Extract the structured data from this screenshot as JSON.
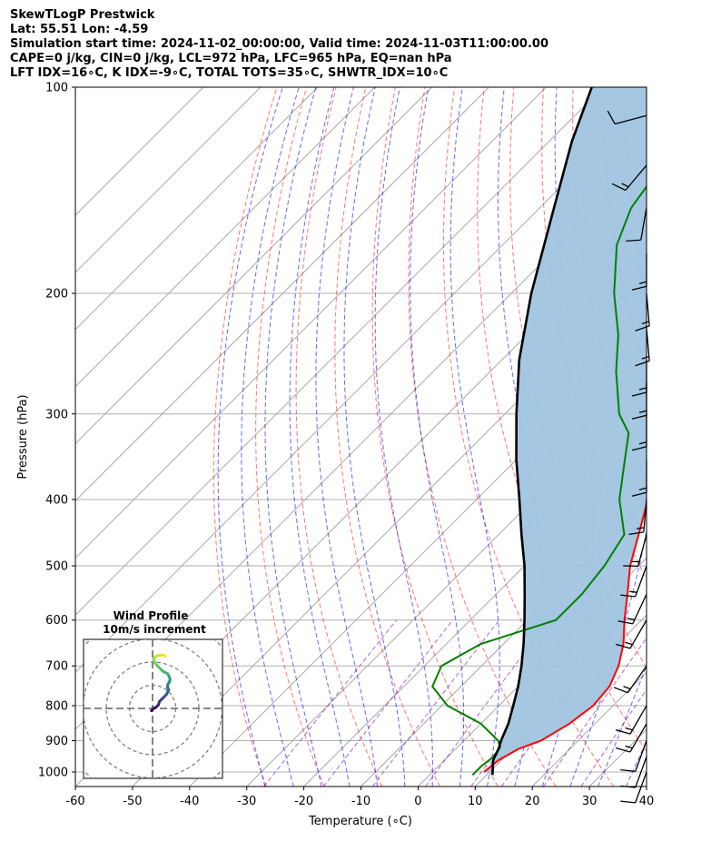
{
  "header": {
    "title": "SkewTLogP Prestwick",
    "location": "Lat: 55.51   Lon: -4.59",
    "times": "Simulation start time: 2024-11-02_00:00:00, Valid time: 2024-11-03T11:00:00.00",
    "indices1": "CAPE=0 j/kg, CIN=0 j/kg, LCL=972 hPa, LFC=965 hPa, EQ=nan hPa",
    "indices2": "LFT IDX=16∘C, K IDX=-9∘C, TOTAL TOTS=35∘C, SHWTR_IDX=10∘C"
  },
  "hodograph": {
    "title": "Wind Profile",
    "subtitle": "10m/s increment"
  },
  "colors": {
    "temperature": "#ff0000",
    "dewpoint": "#008000",
    "parcel": "#000000",
    "shade": "#a0c4df",
    "dry_adiabat": "#ff0000",
    "moist_adiabat": "#0000ff",
    "mixing_ratio": "#8000a0",
    "isotherm": "#a0a0a0"
  },
  "chart_data": {
    "type": "line",
    "xlabel": "Temperature (∘C)",
    "ylabel": "Pressure (hPa)",
    "xlim": [
      -60,
      40
    ],
    "ylim": [
      1050,
      100
    ],
    "yscale": "log",
    "grid": true,
    "x_ticks": [
      -60,
      -50,
      -40,
      -30,
      -20,
      -10,
      0,
      10,
      20,
      30,
      40
    ],
    "y_ticks": [
      100,
      200,
      300,
      400,
      500,
      600,
      700,
      800,
      900,
      1000
    ],
    "series": [
      {
        "role": "temperature",
        "points": [
          [
            1000,
            9
          ],
          [
            960,
            9.5
          ],
          [
            925,
            11
          ],
          [
            900,
            13.5
          ],
          [
            850,
            15.5
          ],
          [
            800,
            16.5
          ],
          [
            750,
            16
          ],
          [
            700,
            14
          ],
          [
            650,
            11
          ],
          [
            600,
            7
          ],
          [
            550,
            3
          ],
          [
            500,
            -1.5
          ],
          [
            450,
            -5.5
          ],
          [
            400,
            -10
          ],
          [
            350,
            -15.5
          ],
          [
            300,
            -21.5
          ],
          [
            270,
            -26
          ],
          [
            250,
            -29
          ],
          [
            230,
            -32
          ],
          [
            200,
            -36
          ],
          [
            180,
            -41
          ],
          [
            160,
            -47
          ],
          [
            140,
            -54
          ],
          [
            125,
            -58
          ],
          [
            110,
            -61
          ],
          [
            100,
            -63
          ]
        ]
      },
      {
        "role": "dewpoint",
        "points": [
          [
            1010,
            7.5
          ],
          [
            980,
            7.5
          ],
          [
            950,
            8
          ],
          [
            920,
            7.5
          ],
          [
            900,
            6
          ],
          [
            850,
            0
          ],
          [
            800,
            -9
          ],
          [
            750,
            -15
          ],
          [
            700,
            -17
          ],
          [
            650,
            -14
          ],
          [
            600,
            -5
          ],
          [
            550,
            -5
          ],
          [
            500,
            -6
          ],
          [
            450,
            -8
          ],
          [
            400,
            -15
          ],
          [
            350,
            -21
          ],
          [
            320,
            -25
          ],
          [
            300,
            -30
          ],
          [
            260,
            -38
          ],
          [
            230,
            -44
          ],
          [
            200,
            -52
          ],
          [
            170,
            -60
          ],
          [
            150,
            -64
          ],
          [
            130,
            -66
          ],
          [
            120,
            -70
          ],
          [
            110,
            -71
          ],
          [
            100,
            -72
          ]
        ]
      },
      {
        "role": "parcel",
        "points": [
          [
            1010,
            11
          ],
          [
            960,
            8.5
          ],
          [
            925,
            7.5
          ],
          [
            900,
            6.5
          ],
          [
            850,
            4.8
          ],
          [
            800,
            2.5
          ],
          [
            750,
            0
          ],
          [
            700,
            -3
          ],
          [
            650,
            -6.5
          ],
          [
            600,
            -10.5
          ],
          [
            550,
            -15
          ],
          [
            500,
            -20
          ],
          [
            450,
            -26
          ],
          [
            400,
            -32.5
          ],
          [
            350,
            -40
          ],
          [
            300,
            -48
          ],
          [
            250,
            -57
          ],
          [
            200,
            -66.5
          ],
          [
            150,
            -77.5
          ],
          [
            120,
            -86
          ],
          [
            100,
            -92
          ]
        ]
      }
    ],
    "wind_barbs": [
      {
        "p": 1000,
        "speed": 10,
        "dir": 200
      },
      {
        "p": 950,
        "speed": 10,
        "dir": 200
      },
      {
        "p": 900,
        "speed": 10,
        "dir": 200
      },
      {
        "p": 850,
        "speed": 15,
        "dir": 210
      },
      {
        "p": 800,
        "speed": 15,
        "dir": 210
      },
      {
        "p": 700,
        "speed": 15,
        "dir": 215
      },
      {
        "p": 600,
        "speed": 15,
        "dir": 210
      },
      {
        "p": 550,
        "speed": 15,
        "dir": 205
      },
      {
        "p": 500,
        "speed": 15,
        "dir": 200
      },
      {
        "p": 450,
        "speed": 15,
        "dir": 195
      },
      {
        "p": 400,
        "speed": 15,
        "dir": 185
      },
      {
        "p": 350,
        "speed": 15,
        "dir": 180
      },
      {
        "p": 300,
        "speed": 15,
        "dir": 180
      },
      {
        "p": 270,
        "speed": 15,
        "dir": 180
      },
      {
        "p": 250,
        "speed": 15,
        "dir": 180
      },
      {
        "p": 225,
        "speed": 15,
        "dir": 175
      },
      {
        "p": 200,
        "speed": 15,
        "dir": 175
      },
      {
        "p": 175,
        "speed": 15,
        "dir": 180
      },
      {
        "p": 150,
        "speed": 10,
        "dir": 190
      },
      {
        "p": 130,
        "speed": 15,
        "dir": 220
      },
      {
        "p": 110,
        "speed": 10,
        "dir": 255
      }
    ],
    "hodograph": {
      "ring_step_ms": 10,
      "rings": 4,
      "u": [
        -0.5,
        0.5,
        1.5,
        2.5,
        3,
        4,
        5,
        6,
        6.5,
        7,
        6.5,
        6.5,
        7,
        7.5,
        7.5,
        7,
        6.5,
        4.5,
        3,
        1.5,
        0.5,
        0.5,
        1,
        1.5,
        3,
        5,
        5.5
      ],
      "v": [
        -1,
        0,
        0.5,
        1.5,
        3,
        4,
        5,
        6,
        7,
        8,
        9,
        10,
        11,
        12,
        13,
        14,
        15,
        16,
        17.5,
        19,
        20.5,
        21.5,
        22,
        22.5,
        23,
        23,
        22.5
      ]
    }
  }
}
